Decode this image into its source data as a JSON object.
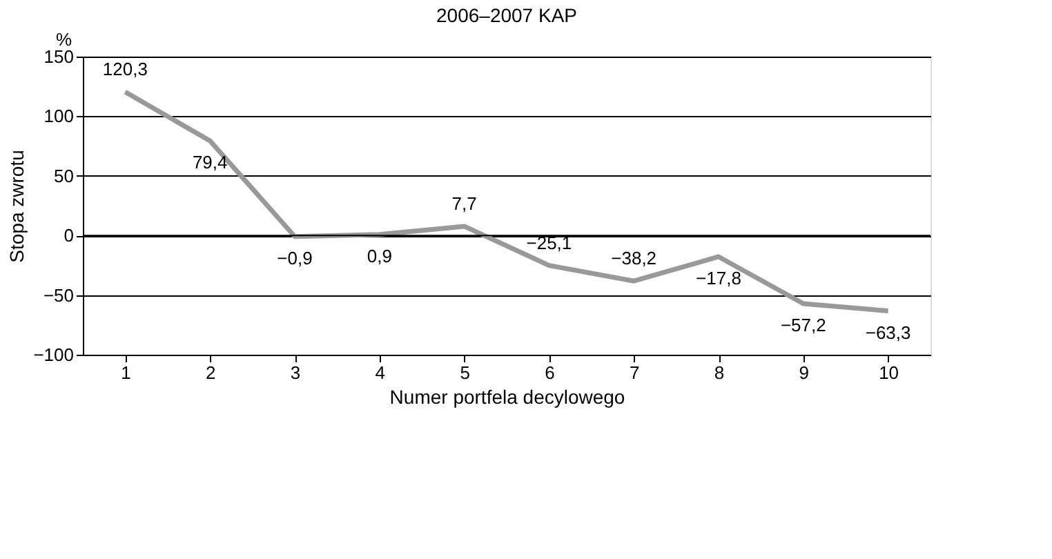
{
  "chart_data": {
    "type": "line",
    "title": "2006–2007 KAP",
    "xlabel": "Numer portfela decylowego",
    "ylabel": "Stopa zwrotu",
    "annotations": [
      "%"
    ],
    "categories": [
      "1",
      "2",
      "3",
      "4",
      "5",
      "6",
      "7",
      "8",
      "9",
      "10"
    ],
    "series": [
      {
        "color": "#999999",
        "values": [
          120.3,
          79.4,
          -0.9,
          0.9,
          7.7,
          -25.1,
          -38.2,
          -17.8,
          -57.2,
          -63.3
        ],
        "value_labels": [
          "120,3",
          "79,4",
          "−0,9",
          "0,9",
          "7,7",
          "−25,1",
          "−38,2",
          "−17,8",
          "−57,2",
          "−63,3"
        ]
      }
    ],
    "ylim": [
      -100,
      150
    ],
    "yticks": [
      {
        "value": -100,
        "label": "−100"
      },
      {
        "value": -50,
        "label": "−50"
      },
      0,
      50,
      100,
      150
    ],
    "grid": "y",
    "marker": "none",
    "line_style": "solid"
  }
}
